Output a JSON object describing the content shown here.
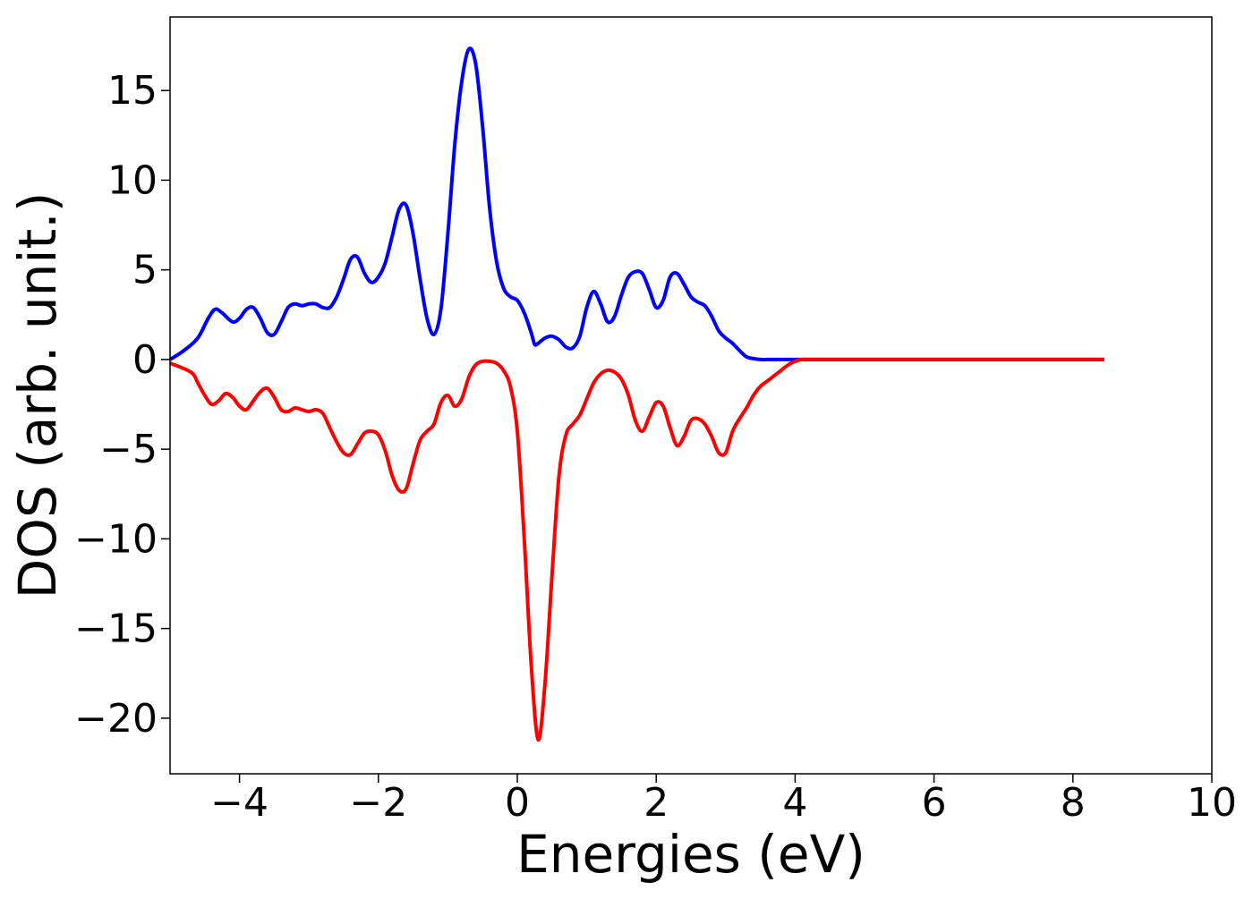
{
  "chart_data": {
    "type": "line",
    "title": "",
    "xlabel": "Energies (eV)",
    "ylabel": "DOS (arb. unit.)",
    "xlim": [
      -5,
      10
    ],
    "ylim": [
      -23.1,
      19.1
    ],
    "xticks": [
      -4,
      -2,
      0,
      2,
      4,
      6,
      8,
      10
    ],
    "xtick_labels": [
      "−4",
      "−2",
      "0",
      "2",
      "4",
      "6",
      "8",
      "10"
    ],
    "yticks": [
      -20,
      -15,
      -10,
      -5,
      0,
      5,
      10,
      15
    ],
    "ytick_labels": [
      "−20",
      "−15",
      "−10",
      "−5",
      "0",
      "5",
      "10",
      "15"
    ],
    "grid": false,
    "legend": "none",
    "series": [
      {
        "color": "#0000ff",
        "x": [
          -5.0,
          -4.8,
          -4.6,
          -4.45,
          -4.35,
          -4.25,
          -4.1,
          -4.0,
          -3.9,
          -3.8,
          -3.7,
          -3.6,
          -3.5,
          -3.4,
          -3.3,
          -3.2,
          -3.1,
          -3.0,
          -2.9,
          -2.8,
          -2.7,
          -2.6,
          -2.5,
          -2.4,
          -2.3,
          -2.2,
          -2.1,
          -2.0,
          -1.9,
          -1.8,
          -1.7,
          -1.6,
          -1.5,
          -1.4,
          -1.3,
          -1.2,
          -1.1,
          -1.0,
          -0.9,
          -0.8,
          -0.7,
          -0.6,
          -0.5,
          -0.4,
          -0.3,
          -0.2,
          -0.1,
          0.0,
          0.1,
          0.2,
          0.25,
          0.3,
          0.4,
          0.5,
          0.6,
          0.7,
          0.8,
          0.9,
          1.0,
          1.1,
          1.2,
          1.3,
          1.4,
          1.5,
          1.6,
          1.7,
          1.8,
          1.9,
          2.0,
          2.1,
          2.2,
          2.3,
          2.4,
          2.5,
          2.6,
          2.7,
          2.8,
          2.9,
          3.0,
          3.1,
          3.2,
          3.3,
          3.4,
          3.5,
          3.6,
          3.7,
          3.8,
          3.9,
          4.0,
          4.1,
          4.2,
          4.3,
          4.4,
          4.5,
          4.6,
          4.7,
          4.8,
          4.9,
          5.0,
          5.1,
          5.2,
          5.3,
          5.4,
          5.5,
          5.6,
          5.7,
          5.8,
          5.9,
          6.0,
          6.2,
          6.5,
          7.0,
          7.5,
          8.0,
          8.45
        ],
        "y": [
          0.0,
          0.5,
          1.2,
          2.3,
          2.8,
          2.6,
          2.1,
          2.3,
          2.8,
          2.9,
          2.3,
          1.5,
          1.4,
          2.1,
          2.9,
          3.1,
          3.0,
          3.1,
          3.1,
          2.9,
          2.9,
          3.5,
          4.5,
          5.6,
          5.7,
          4.8,
          4.3,
          4.6,
          5.4,
          6.9,
          8.4,
          8.6,
          7.0,
          4.5,
          2.3,
          1.4,
          2.8,
          7.0,
          12.0,
          15.5,
          17.3,
          16.5,
          13.0,
          8.5,
          5.5,
          4.0,
          3.5,
          3.3,
          2.6,
          1.5,
          0.85,
          0.9,
          1.2,
          1.3,
          1.1,
          0.7,
          0.65,
          1.3,
          2.9,
          3.8,
          3.1,
          2.1,
          2.4,
          3.6,
          4.6,
          4.9,
          4.8,
          3.9,
          2.9,
          3.3,
          4.6,
          4.8,
          4.2,
          3.5,
          3.2,
          3.0,
          2.4,
          1.6,
          1.2,
          0.9,
          0.5,
          0.15,
          0.05,
          0.0,
          0.0,
          0.0,
          0.0,
          0.0,
          0.0,
          0.0,
          0.0,
          0.0,
          0.0,
          0.0,
          0.0,
          0.0,
          0.0,
          0.0,
          0.0,
          0.0,
          0.0,
          0.0,
          0.0,
          0.0,
          0.0,
          0.0,
          0.0,
          0.0,
          0.0,
          0.0,
          0.0,
          0.0,
          0.0,
          0.0,
          0.0
        ]
      },
      {
        "color": "#ff0000",
        "x": [
          -5.0,
          -4.7,
          -4.6,
          -4.5,
          -4.4,
          -4.3,
          -4.2,
          -4.1,
          -4.0,
          -3.9,
          -3.8,
          -3.7,
          -3.6,
          -3.5,
          -3.4,
          -3.3,
          -3.2,
          -3.1,
          -3.0,
          -2.9,
          -2.8,
          -2.7,
          -2.6,
          -2.5,
          -2.4,
          -2.3,
          -2.2,
          -2.1,
          -2.0,
          -1.9,
          -1.8,
          -1.7,
          -1.6,
          -1.5,
          -1.4,
          -1.3,
          -1.2,
          -1.1,
          -1.0,
          -0.9,
          -0.8,
          -0.7,
          -0.6,
          -0.5,
          -0.4,
          -0.3,
          -0.2,
          -0.1,
          0.0,
          0.1,
          0.2,
          0.3,
          0.4,
          0.5,
          0.6,
          0.7,
          0.8,
          0.9,
          1.0,
          1.1,
          1.2,
          1.3,
          1.4,
          1.5,
          1.6,
          1.7,
          1.8,
          1.9,
          2.0,
          2.1,
          2.2,
          2.3,
          2.4,
          2.5,
          2.6,
          2.7,
          2.8,
          2.9,
          3.0,
          3.1,
          3.2,
          3.3,
          3.4,
          3.5,
          3.6,
          3.7,
          3.8,
          3.9,
          4.0,
          4.1,
          4.2,
          4.3,
          4.4,
          4.5,
          4.6,
          4.7,
          4.8,
          4.9,
          5.0,
          5.1,
          5.2,
          5.3,
          5.4,
          5.5,
          5.6,
          5.7,
          5.8,
          5.9,
          6.0,
          6.2,
          6.5,
          7.0,
          7.5,
          8.0,
          8.45
        ],
        "y": [
          -0.2,
          -0.7,
          -1.3,
          -2.0,
          -2.5,
          -2.3,
          -1.9,
          -2.1,
          -2.6,
          -2.8,
          -2.3,
          -1.8,
          -1.6,
          -2.1,
          -2.8,
          -2.9,
          -2.7,
          -2.8,
          -2.9,
          -2.8,
          -3.0,
          -3.8,
          -4.6,
          -5.2,
          -5.3,
          -4.7,
          -4.1,
          -4.0,
          -4.2,
          -5.1,
          -6.5,
          -7.3,
          -7.2,
          -5.8,
          -4.5,
          -4.0,
          -3.6,
          -2.4,
          -2.0,
          -2.6,
          -2.2,
          -1.0,
          -0.3,
          -0.1,
          -0.1,
          -0.2,
          -0.6,
          -1.5,
          -4.0,
          -10.0,
          -17.0,
          -21.2,
          -18.0,
          -12.0,
          -6.5,
          -4.2,
          -3.6,
          -3.1,
          -2.2,
          -1.3,
          -0.8,
          -0.6,
          -0.7,
          -1.1,
          -2.0,
          -3.4,
          -4.0,
          -3.2,
          -2.4,
          -2.6,
          -3.8,
          -4.8,
          -4.3,
          -3.4,
          -3.3,
          -3.6,
          -4.3,
          -5.2,
          -5.2,
          -4.0,
          -3.3,
          -2.7,
          -2.0,
          -1.5,
          -1.2,
          -0.9,
          -0.6,
          -0.3,
          -0.1,
          0.0,
          0.0,
          0.0,
          0.0,
          0.0,
          0.0,
          0.0,
          0.0,
          0.0,
          0.0,
          0.0,
          0.0,
          0.0,
          0.0,
          0.0,
          0.0,
          0.0,
          0.0,
          0.0,
          0.0,
          0.0,
          0.0,
          0.0,
          0.0,
          0.0,
          0.0
        ]
      }
    ]
  }
}
